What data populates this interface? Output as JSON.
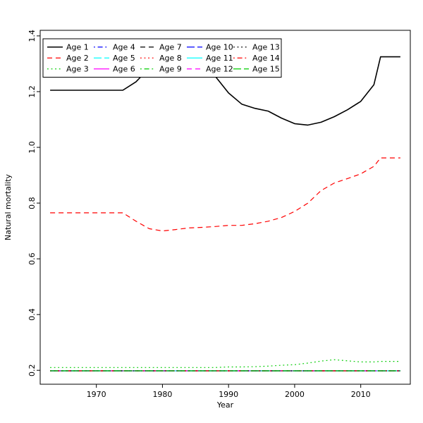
{
  "figure": {
    "background": "#ffffff",
    "axis_color": "#000000",
    "text_color": "#000000"
  },
  "chart_data": {
    "type": "line",
    "title": "",
    "xlabel": "Year",
    "ylabel": "Natural mortality",
    "xlim": [
      1961.5,
      2017.5
    ],
    "ylim": [
      0.15,
      1.42
    ],
    "x_ticks": [
      1970,
      1980,
      1990,
      2000,
      2010
    ],
    "x_tick_labels": [
      "1970",
      "1980",
      "1990",
      "2000",
      "2010"
    ],
    "y_ticks": [
      0.2,
      0.4,
      0.6,
      0.8,
      1.0,
      1.2,
      1.4
    ],
    "y_tick_labels": [
      "0.2",
      "0.4",
      "0.6",
      "0.8",
      "1.0",
      "1.2",
      "1.4"
    ],
    "grid": false,
    "legend": {
      "position": "top-left",
      "columns": 5,
      "rows": 3,
      "order": "column-major",
      "labels": [
        "Age 1",
        "Age 2",
        "Age 3",
        "Age 4",
        "Age 5",
        "Age 6",
        "Age 7",
        "Age 8",
        "Age 9",
        "Age 10",
        "Age 11",
        "Age 12",
        "Age 13",
        "Age 14",
        "Age 15"
      ]
    },
    "x": [
      1963,
      1966,
      1969,
      1972,
      1974,
      1976,
      1978,
      1980,
      1982,
      1984,
      1986,
      1988,
      1990,
      1992,
      1994,
      1996,
      1998,
      2000,
      2002,
      2004,
      2006,
      2008,
      2010,
      2012,
      2013,
      2014,
      2016
    ],
    "series": [
      {
        "name": "Age 1",
        "color": "#000000",
        "linetype": "solid",
        "width": 1.6,
        "values": [
          1.205,
          1.205,
          1.205,
          1.205,
          1.205,
          1.235,
          1.285,
          1.33,
          1.35,
          1.345,
          1.315,
          1.255,
          1.195,
          1.155,
          1.14,
          1.13,
          1.105,
          1.085,
          1.08,
          1.09,
          1.11,
          1.135,
          1.165,
          1.225,
          1.325,
          1.325,
          1.325
        ]
      },
      {
        "name": "Age 2",
        "color": "#FF0000",
        "linetype": "dashed",
        "width": 1.2,
        "values": [
          0.765,
          0.765,
          0.765,
          0.765,
          0.765,
          0.735,
          0.708,
          0.7,
          0.705,
          0.711,
          0.713,
          0.716,
          0.72,
          0.72,
          0.726,
          0.735,
          0.748,
          0.77,
          0.8,
          0.845,
          0.872,
          0.888,
          0.905,
          0.932,
          0.962,
          0.962,
          0.962
        ]
      },
      {
        "name": "Age 3",
        "color": "#00CC00",
        "linetype": "dotted",
        "width": 1.2,
        "values": [
          0.21,
          0.21,
          0.21,
          0.21,
          0.21,
          0.21,
          0.21,
          0.21,
          0.21,
          0.21,
          0.21,
          0.21,
          0.212,
          0.212,
          0.213,
          0.215,
          0.218,
          0.22,
          0.226,
          0.233,
          0.238,
          0.234,
          0.23,
          0.23,
          0.232,
          0.232,
          0.232
        ]
      },
      {
        "name": "Age 4",
        "color": "#0000FF",
        "linetype": "dashdot",
        "width": 1.2,
        "constant": 0.198
      },
      {
        "name": "Age 5",
        "color": "#00FFFF",
        "linetype": "longdash",
        "width": 1.2,
        "constant": 0.198
      },
      {
        "name": "Age 6",
        "color": "#FF00FF",
        "linetype": "solid",
        "width": 1.2,
        "constant": 0.198
      },
      {
        "name": "Age 7",
        "color": "#000000",
        "linetype": "dashed",
        "width": 1.2,
        "constant": 0.198
      },
      {
        "name": "Age 8",
        "color": "#FF0000",
        "linetype": "dotted",
        "width": 1.2,
        "constant": 0.198
      },
      {
        "name": "Age 9",
        "color": "#00CC00",
        "linetype": "dashdot",
        "width": 1.2,
        "constant": 0.198
      },
      {
        "name": "Age 10",
        "color": "#0000FF",
        "linetype": "longdash",
        "width": 1.2,
        "constant": 0.198
      },
      {
        "name": "Age 11",
        "color": "#00FFFF",
        "linetype": "solid",
        "width": 1.2,
        "constant": 0.198
      },
      {
        "name": "Age 12",
        "color": "#FF00FF",
        "linetype": "dashed",
        "width": 1.2,
        "constant": 0.198
      },
      {
        "name": "Age 13",
        "color": "#000000",
        "linetype": "dotted",
        "width": 1.2,
        "constant": 0.198
      },
      {
        "name": "Age 14",
        "color": "#FF0000",
        "linetype": "dashdot",
        "width": 1.2,
        "constant": 0.198
      },
      {
        "name": "Age 15",
        "color": "#00CC00",
        "linetype": "longdash",
        "width": 1.2,
        "constant": 0.198
      }
    ]
  }
}
